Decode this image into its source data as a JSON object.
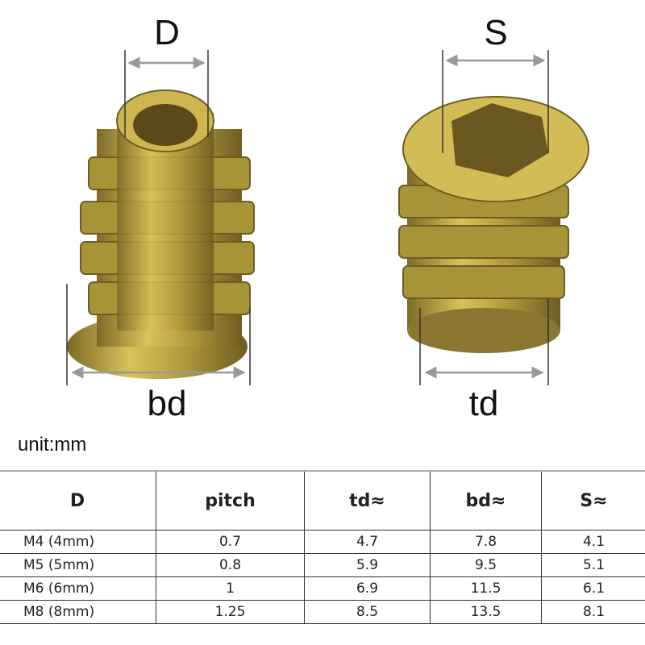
{
  "dimension_labels": {
    "D": "D",
    "S": "S",
    "bd": "bd",
    "td": "td"
  },
  "unit_label": "unit:mm",
  "table": {
    "headers": [
      "D",
      "pitch",
      "td≈",
      "bd≈",
      "S≈"
    ],
    "rows": [
      [
        "M4 (4mm)",
        "0.7",
        "4.7",
        "7.8",
        "4.1"
      ],
      [
        "M5 (5mm)",
        "0.8",
        "5.9",
        "9.5",
        "5.1"
      ],
      [
        "M6 (6mm)",
        "1",
        "6.9",
        "11.5",
        "6.1"
      ],
      [
        "M8 (8mm)",
        "1.25",
        "8.5",
        "13.5",
        "8.1"
      ]
    ]
  },
  "colors": {
    "brass": "#c9b24a",
    "brass_dark": "#7d6a28",
    "line": "#333333"
  }
}
